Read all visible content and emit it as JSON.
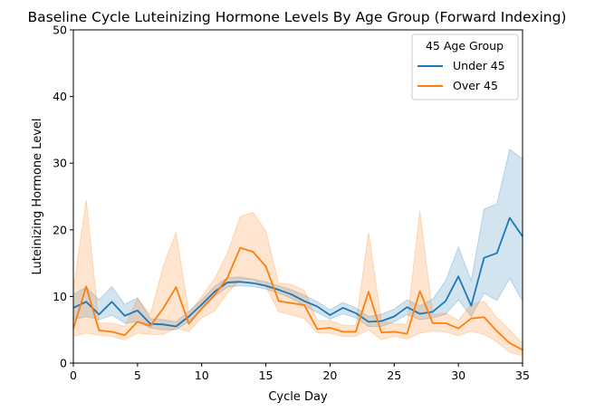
{
  "chart_data": {
    "type": "line",
    "title": "Baseline Cycle Luteinizing Hormone Levels By Age Group (Forward Indexing)",
    "xlabel": "Cycle Day",
    "ylabel": "Luteinizing Hormone Level",
    "xlim": [
      0,
      35
    ],
    "ylim": [
      0,
      50
    ],
    "xticks": [
      "0",
      "5",
      "10",
      "15",
      "20",
      "25",
      "30",
      "35"
    ],
    "yticks": [
      "0",
      "10",
      "20",
      "30",
      "40",
      "50"
    ],
    "grid": false,
    "legend": {
      "title": "45 Age Group",
      "position": "top-right"
    },
    "x": [
      0,
      1,
      2,
      3,
      4,
      5,
      6,
      7,
      8,
      9,
      10,
      11,
      12,
      13,
      14,
      15,
      16,
      17,
      18,
      19,
      20,
      21,
      22,
      23,
      24,
      25,
      26,
      27,
      28,
      29,
      30,
      31,
      32,
      33,
      34,
      35
    ],
    "series": [
      {
        "name": "Under 45",
        "color": "#1f77b4",
        "values": [
          8.3,
          9.2,
          7.3,
          9.2,
          7.1,
          7.9,
          5.9,
          5.8,
          5.5,
          7.0,
          8.8,
          10.7,
          12.1,
          12.2,
          12.0,
          11.6,
          11.0,
          10.3,
          9.3,
          8.5,
          7.2,
          8.3,
          7.5,
          6.2,
          6.3,
          7.0,
          8.4,
          7.4,
          7.7,
          9.3,
          13.0,
          8.6,
          15.8,
          16.5,
          21.8,
          19.0
        ],
        "ci_low": [
          6.5,
          7.0,
          6.5,
          7.2,
          6.0,
          6.2,
          5.3,
          5.0,
          5.0,
          6.3,
          8.0,
          10.0,
          11.4,
          11.6,
          11.5,
          11.1,
          10.5,
          9.7,
          8.6,
          7.6,
          6.6,
          7.4,
          6.8,
          5.5,
          5.5,
          6.2,
          7.3,
          6.5,
          6.8,
          7.3,
          9.5,
          7.0,
          10.5,
          9.4,
          12.7,
          9.3
        ],
        "ci_high": [
          10.3,
          11.4,
          9.5,
          11.5,
          8.8,
          9.8,
          6.7,
          6.5,
          6.2,
          7.8,
          9.5,
          11.5,
          12.8,
          12.9,
          12.6,
          12.2,
          11.6,
          11.0,
          10.2,
          9.2,
          8.0,
          9.1,
          8.3,
          7.0,
          7.3,
          8.1,
          9.5,
          8.6,
          9.6,
          12.3,
          17.4,
          12.4,
          23.1,
          23.9,
          32.1,
          30.6
        ]
      },
      {
        "name": "Over 45",
        "color": "#ff7f0e",
        "values": [
          5.2,
          11.5,
          4.9,
          4.7,
          4.2,
          6.2,
          5.6,
          8.2,
          11.4,
          5.9,
          8.2,
          10.2,
          12.8,
          17.3,
          16.7,
          14.5,
          9.3,
          9.0,
          8.7,
          5.1,
          5.3,
          4.7,
          4.7,
          10.7,
          4.6,
          4.7,
          4.4,
          10.8,
          6.0,
          6.0,
          5.2,
          6.7,
          6.9,
          4.8,
          3.0,
          2.0
        ],
        "ci_low": [
          4.0,
          4.5,
          4.2,
          4.0,
          3.5,
          4.5,
          4.3,
          4.3,
          5.3,
          4.7,
          6.8,
          7.8,
          10.5,
          12.6,
          12.5,
          11.5,
          7.7,
          7.2,
          6.7,
          4.5,
          4.5,
          4.0,
          4.0,
          5.0,
          3.5,
          4.0,
          3.6,
          4.5,
          4.8,
          4.7,
          4.1,
          4.8,
          4.3,
          3.2,
          1.6,
          1.1
        ],
        "ci_high": [
          11.0,
          24.5,
          6.0,
          6.0,
          5.5,
          9.7,
          7.3,
          14.5,
          19.6,
          7.5,
          10.0,
          12.6,
          16.5,
          22.0,
          22.6,
          19.8,
          12.0,
          11.8,
          10.9,
          6.4,
          6.4,
          5.7,
          5.6,
          19.6,
          6.3,
          5.9,
          5.9,
          22.9,
          7.3,
          7.5,
          6.4,
          8.8,
          9.3,
          6.8,
          5.0,
          2.9
        ]
      }
    ]
  }
}
